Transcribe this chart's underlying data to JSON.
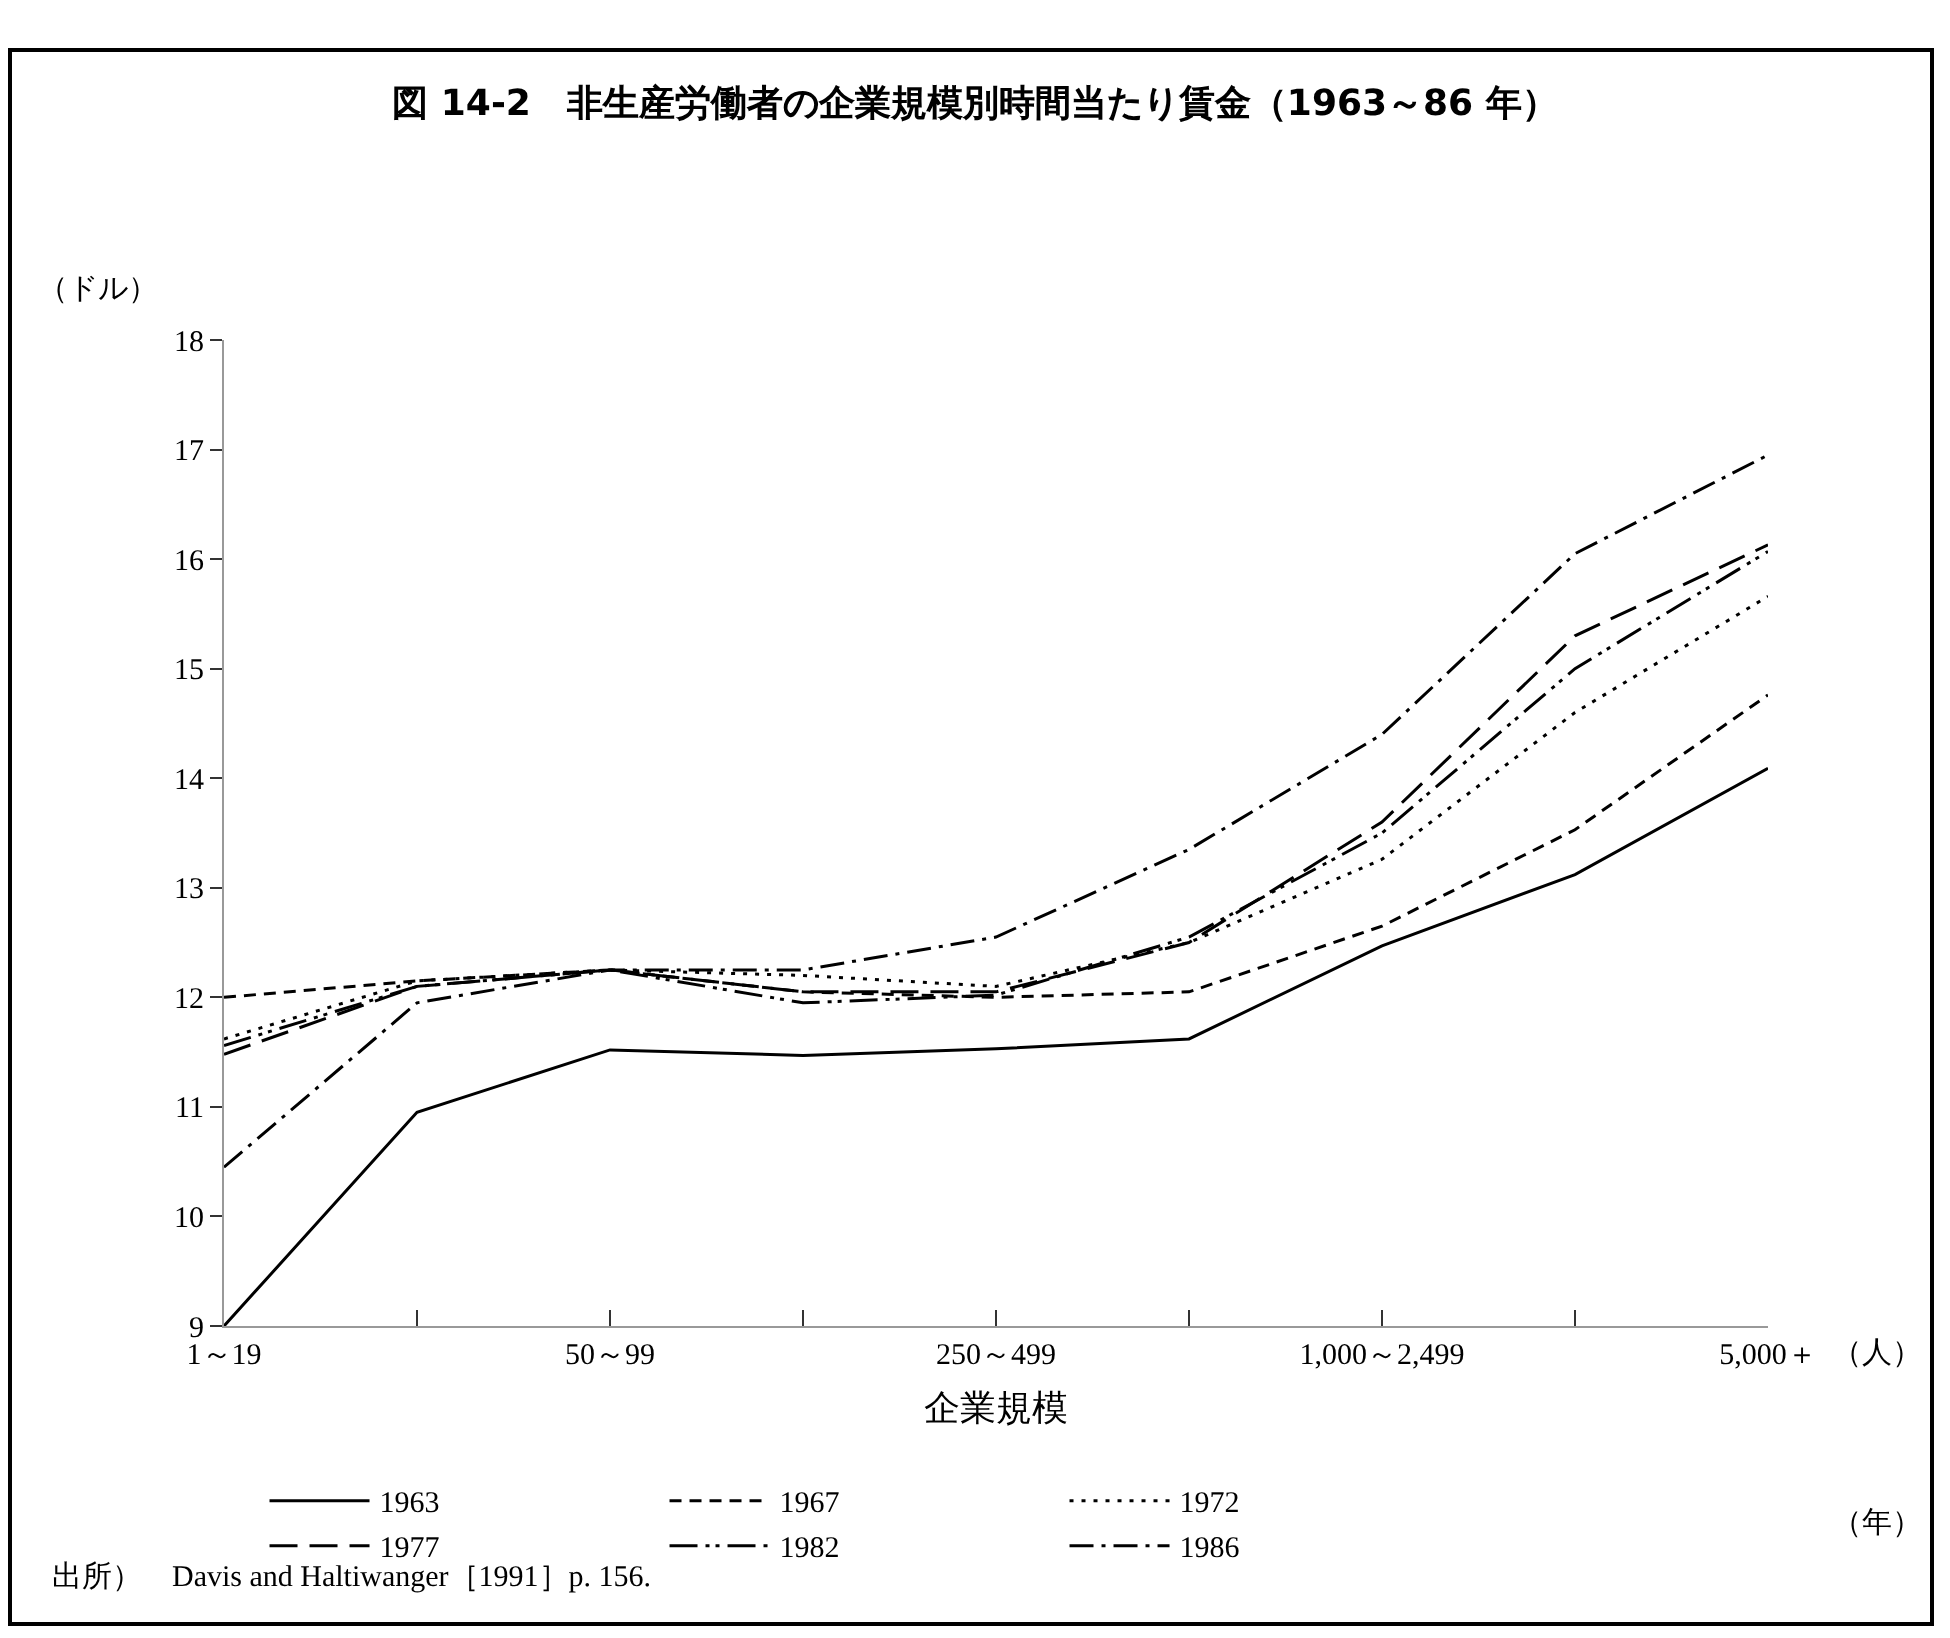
{
  "chart_data": {
    "type": "line",
    "title": "図 14-2　非生産労働者の企業規模別時間当たり賃金（1963～86 年）",
    "xlabel": "企業規模",
    "ylabel": "（ドル）",
    "categories": [
      "1～19",
      null,
      "50～99",
      null,
      "250～499",
      null,
      "1,000～2,499",
      null,
      "5,000＋"
    ],
    "ylim": [
      9,
      18
    ],
    "yticks": [
      9,
      10,
      11,
      12,
      13,
      14,
      15,
      16,
      17,
      18
    ],
    "grid": false,
    "legend": "bottom",
    "marker": "none",
    "series": [
      {
        "name": "1963",
        "color": "#000000",
        "line_style": "solid",
        "values": [
          9.0,
          10.95,
          11.52,
          11.47,
          11.53,
          11.62,
          12.47,
          13.12,
          14.09
        ]
      },
      {
        "name": "1967",
        "color": "#000000",
        "line_style": "dashed",
        "values": [
          12.0,
          12.15,
          12.25,
          12.05,
          12.0,
          12.05,
          12.65,
          13.53,
          14.76
        ]
      },
      {
        "name": "1972",
        "color": "#000000",
        "line_style": "dotted",
        "values": [
          11.62,
          12.15,
          12.25,
          12.2,
          12.1,
          12.5,
          13.26,
          14.6,
          15.66
        ]
      },
      {
        "name": "1977",
        "color": "#000000",
        "line_style": "longdash",
        "values": [
          11.48,
          12.1,
          12.25,
          12.05,
          12.05,
          12.5,
          13.6,
          15.3,
          16.13
        ]
      },
      {
        "name": "1982",
        "color": "#000000",
        "line_style": "dashdotdot",
        "values": [
          11.56,
          12.1,
          12.25,
          11.95,
          12.02,
          12.55,
          13.5,
          15.0,
          16.07
        ]
      },
      {
        "name": "1986",
        "color": "#000000",
        "line_style": "dashdot",
        "values": [
          10.45,
          11.95,
          12.25,
          12.25,
          12.55,
          13.35,
          14.4,
          16.05,
          16.95
        ]
      }
    ],
    "annotations": [
      "（人）",
      "（年）",
      "出所）　Davis and Haltiwanger［1991］p. 156."
    ]
  }
}
